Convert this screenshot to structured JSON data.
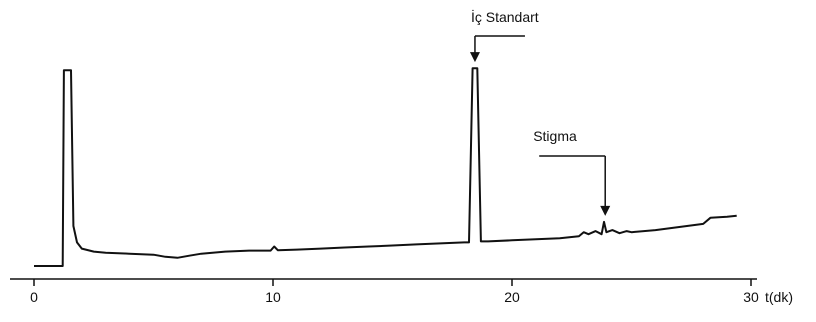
{
  "chart_data": {
    "type": "line",
    "title": "",
    "xlabel": "t(dk)",
    "ylabel": "",
    "xlim": [
      0,
      32
    ],
    "ylim": [
      0,
      105
    ],
    "x_ticks": [
      0,
      10,
      20,
      30
    ],
    "x_tick_labels": [
      "0",
      "10",
      "20",
      "30"
    ],
    "grid": false,
    "legend": "none",
    "series": [
      {
        "points": [
          [
            0,
            0.5
          ],
          [
            1.2,
            0.5
          ],
          [
            1.25,
            96
          ],
          [
            1.55,
            96
          ],
          [
            1.65,
            20
          ],
          [
            1.8,
            12
          ],
          [
            2.0,
            9
          ],
          [
            2.5,
            7.5
          ],
          [
            3,
            7
          ],
          [
            4,
            6.5
          ],
          [
            5,
            6
          ],
          [
            5.5,
            5
          ],
          [
            6,
            4.5
          ],
          [
            6.5,
            5.5
          ],
          [
            7,
            6.5
          ],
          [
            8,
            7.5
          ],
          [
            9,
            8
          ],
          [
            9.9,
            8
          ],
          [
            10.05,
            10
          ],
          [
            10.2,
            8.2
          ],
          [
            11,
            8.5
          ],
          [
            12,
            9
          ],
          [
            13,
            9.5
          ],
          [
            14,
            10
          ],
          [
            15,
            10.5
          ],
          [
            16,
            11
          ],
          [
            17,
            11.5
          ],
          [
            18,
            12
          ],
          [
            18.2,
            12
          ],
          [
            18.35,
            97
          ],
          [
            18.55,
            97
          ],
          [
            18.7,
            12.5
          ],
          [
            19,
            12.5
          ],
          [
            20,
            13
          ],
          [
            21,
            13.5
          ],
          [
            22,
            14
          ],
          [
            22.8,
            15
          ],
          [
            23.0,
            17
          ],
          [
            23.2,
            16
          ],
          [
            23.5,
            17.5
          ],
          [
            23.75,
            16
          ],
          [
            23.85,
            22
          ],
          [
            23.95,
            17
          ],
          [
            24.2,
            18
          ],
          [
            24.5,
            16.5
          ],
          [
            24.8,
            17.5
          ],
          [
            25,
            17
          ],
          [
            26,
            18
          ],
          [
            27,
            19.5
          ],
          [
            28,
            21
          ],
          [
            28.3,
            24
          ],
          [
            29,
            24.5
          ],
          [
            29.4,
            25
          ]
        ]
      }
    ],
    "annotations": [
      {
        "label": "İç Standart",
        "x": 18.45,
        "y": 97
      },
      {
        "label": "Stigma",
        "x": 23.9,
        "y": 22
      }
    ],
    "axis_color": "#111111",
    "line_color": "#111111"
  }
}
